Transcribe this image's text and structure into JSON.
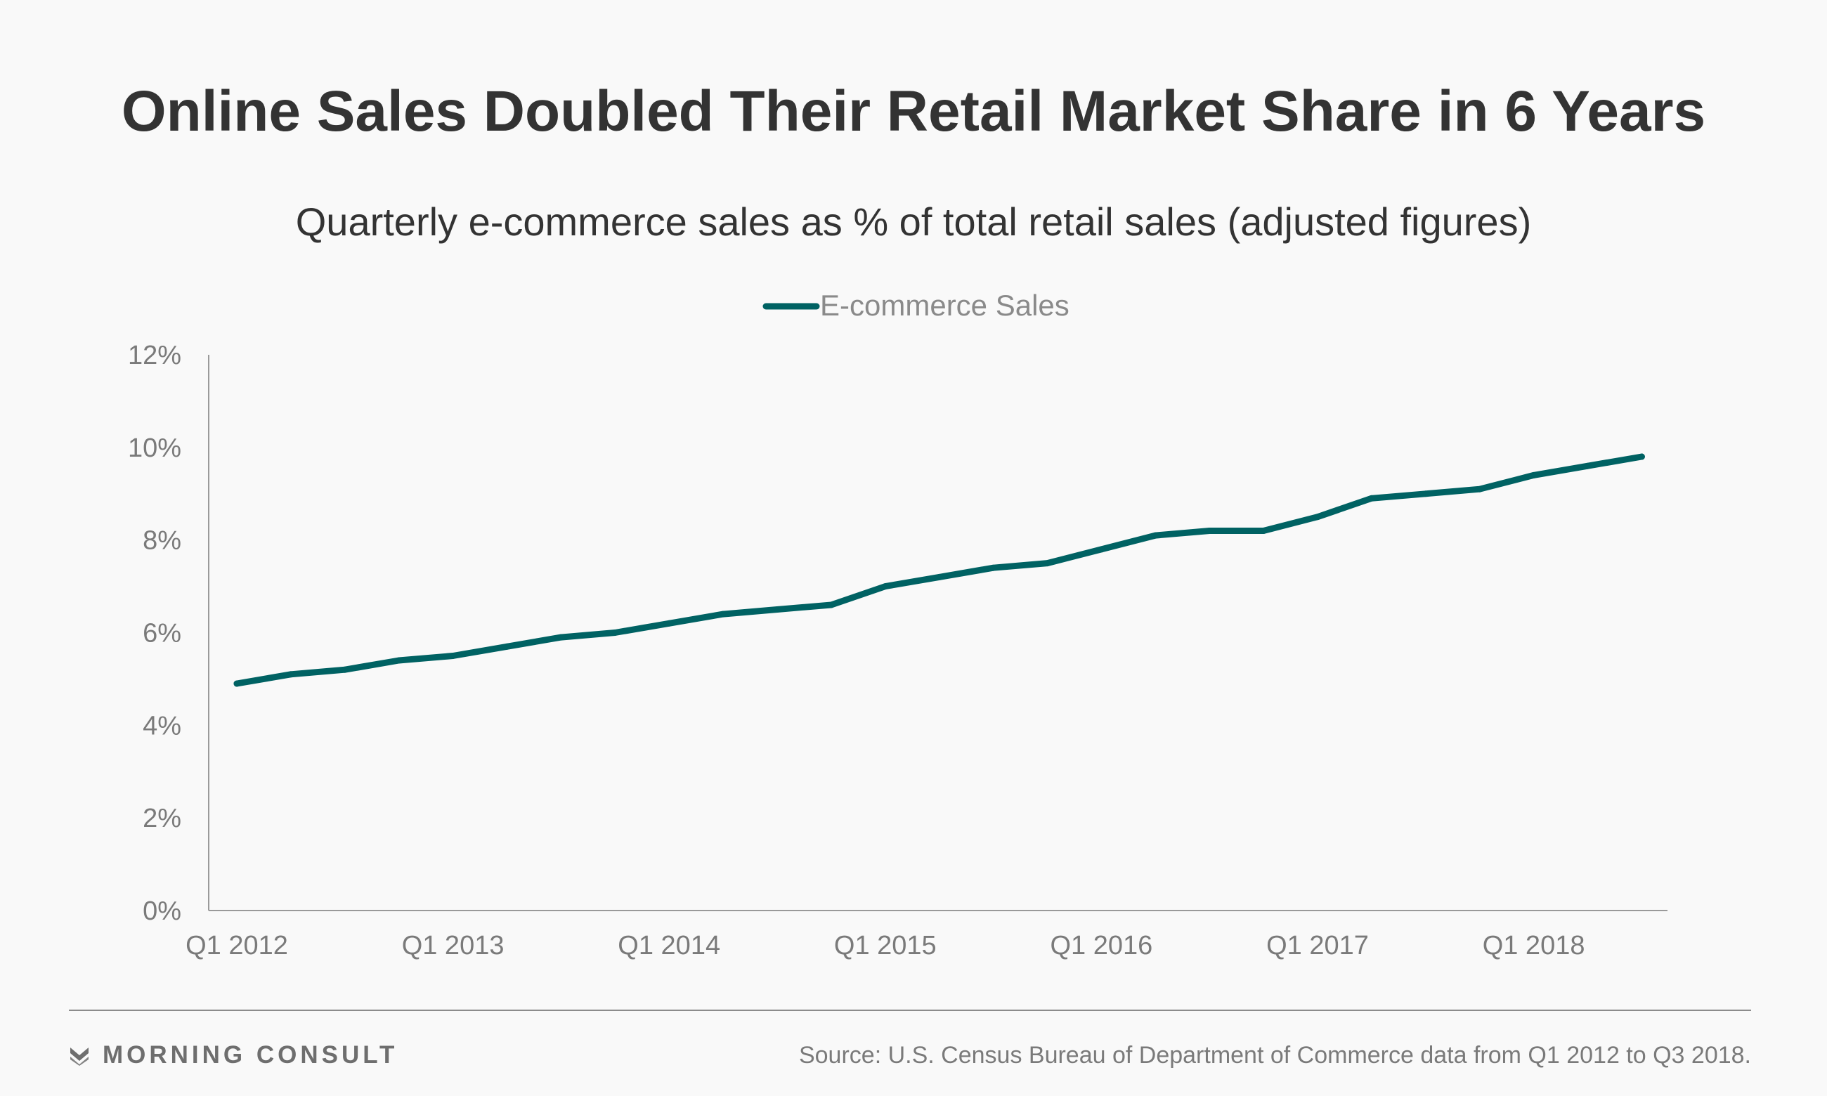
{
  "header": {
    "title": "Online Sales Doubled Their Retail Market Share in 6 Years",
    "subtitle": "Quarterly e-commerce sales as % of total retail sales (adjusted figures)"
  },
  "footer": {
    "brand": "MORNING CONSULT",
    "source": "Source: U.S. Census Bureau of Department of Commerce data from Q1 2012 to Q3 2018."
  },
  "colors": {
    "series": "#006263",
    "axis": "#9a9a9a",
    "text_dark": "#333333",
    "text_muted": "#7a7a7a"
  },
  "icons": {
    "brand_logo": "morning-consult-logo-icon"
  },
  "chart_data": {
    "type": "line",
    "title": "Online Sales Doubled Their Retail Market Share in 6 Years",
    "subtitle": "Quarterly e-commerce sales as % of total retail sales (adjusted figures)",
    "xlabel": "",
    "ylabel": "",
    "ylim": [
      0,
      12
    ],
    "y_ticks": [
      "0%",
      "2%",
      "4%",
      "6%",
      "8%",
      "10%",
      "12%"
    ],
    "y_tick_values": [
      0,
      2,
      4,
      6,
      8,
      10,
      12
    ],
    "x_ticks": [
      "Q1 2012",
      "Q1 2013",
      "Q1 2014",
      "Q1 2015",
      "Q1 2016",
      "Q1 2017",
      "Q1 2018"
    ],
    "categories": [
      "Q1 2012",
      "Q2 2012",
      "Q3 2012",
      "Q4 2012",
      "Q1 2013",
      "Q2 2013",
      "Q3 2013",
      "Q4 2013",
      "Q1 2014",
      "Q2 2014",
      "Q3 2014",
      "Q4 2014",
      "Q1 2015",
      "Q2 2015",
      "Q3 2015",
      "Q4 2015",
      "Q1 2016",
      "Q2 2016",
      "Q3 2016",
      "Q4 2016",
      "Q1 2017",
      "Q2 2017",
      "Q3 2017",
      "Q4 2017",
      "Q1 2018",
      "Q2 2018",
      "Q3 2018"
    ],
    "grid": false,
    "legend_position": "top-center",
    "series": [
      {
        "name": "E-commerce Sales",
        "values": [
          4.9,
          5.1,
          5.2,
          5.4,
          5.5,
          5.7,
          5.9,
          6.0,
          6.2,
          6.4,
          6.5,
          6.6,
          7.0,
          7.2,
          7.4,
          7.5,
          7.8,
          8.1,
          8.2,
          8.2,
          8.5,
          8.9,
          9.0,
          9.1,
          9.4,
          9.6,
          9.8
        ]
      }
    ]
  }
}
